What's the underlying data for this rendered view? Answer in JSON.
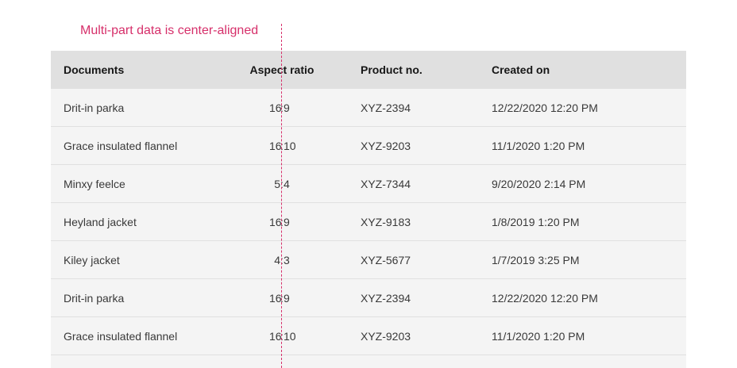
{
  "annotation": {
    "text": "Multi-part data is center-aligned",
    "accent_color": "#d62f6a"
  },
  "table": {
    "columns": [
      "Documents",
      "Aspect ratio",
      "Product no.",
      "Created on"
    ],
    "rows": [
      {
        "document": "Drit-in parka",
        "aspect_w": "16",
        "aspect_h": "9",
        "product": "XYZ-2394",
        "created": "12/22/2020 12:20 PM"
      },
      {
        "document": "Grace insulated flannel",
        "aspect_w": "16",
        "aspect_h": "10",
        "product": "XYZ-9203",
        "created": "11/1/2020 1:20 PM"
      },
      {
        "document": "Minxy feelce",
        "aspect_w": "5",
        "aspect_h": "4",
        "product": "XYZ-7344",
        "created": "9/20/2020 2:14 PM"
      },
      {
        "document": "Heyland jacket",
        "aspect_w": "16",
        "aspect_h": "9",
        "product": "XYZ-9183",
        "created": "1/8/2019 1:20 PM"
      },
      {
        "document": "Kiley jacket",
        "aspect_w": "4",
        "aspect_h": "3",
        "product": "XYZ-5677",
        "created": "1/7/2019 3:25 PM"
      },
      {
        "document": "Drit-in parka",
        "aspect_w": "16",
        "aspect_h": "9",
        "product": "XYZ-2394",
        "created": "12/22/2020 12:20 PM"
      },
      {
        "document": "Grace insulated flannel",
        "aspect_w": "16",
        "aspect_h": "10",
        "product": "XYZ-9203",
        "created": "11/1/2020 1:20 PM"
      }
    ]
  },
  "colors": {
    "header_bg": "#e0e0e0",
    "row_bg": "#f4f4f4",
    "row_divider": "#e0e0e0",
    "text": "#393939",
    "header_text": "#161616"
  }
}
